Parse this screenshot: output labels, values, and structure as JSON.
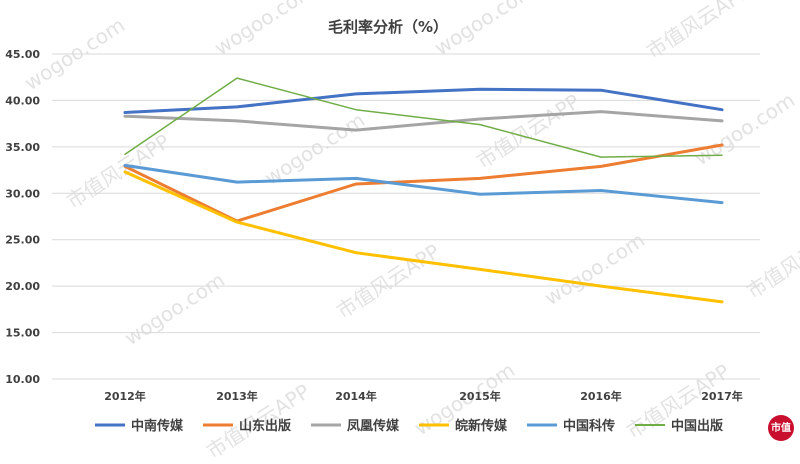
{
  "watermark": {
    "text": "wogoo.com",
    "text2": "市值风云APP"
  },
  "logo": {
    "text": "市值"
  },
  "chart_data": {
    "type": "line",
    "title": "毛利率分析（%）",
    "categories": [
      "2012年",
      "2013年",
      "2014年",
      "2015年",
      "2016年",
      "2017年"
    ],
    "ylim": [
      10,
      45
    ],
    "yticks": [
      "10.00",
      "15.00",
      "20.00",
      "25.00",
      "30.00",
      "35.00",
      "40.00",
      "45.00"
    ],
    "grid": true,
    "legend_position": "bottom",
    "series": [
      {
        "name": "中南传媒",
        "color": "#4472c4",
        "width": 3,
        "values": [
          38.7,
          39.3,
          40.7,
          41.2,
          41.1,
          39.0
        ]
      },
      {
        "name": "山东出版",
        "color": "#ed7d31",
        "width": 3,
        "values": [
          32.9,
          27.0,
          31.0,
          31.6,
          32.9,
          35.2
        ]
      },
      {
        "name": "凤凰传媒",
        "color": "#a5a5a5",
        "width": 3,
        "values": [
          38.3,
          37.8,
          36.8,
          38.0,
          38.8,
          37.8
        ]
      },
      {
        "name": "皖新传媒",
        "color": "#ffc000",
        "width": 3,
        "values": [
          32.3,
          26.9,
          23.6,
          21.8,
          20.0,
          18.3
        ]
      },
      {
        "name": "中国科传",
        "color": "#5b9bd5",
        "width": 3,
        "values": [
          33.0,
          31.2,
          31.6,
          29.9,
          30.3,
          29.0
        ]
      },
      {
        "name": "中国出版",
        "color": "#70ad47",
        "width": 1.5,
        "values": [
          34.2,
          42.4,
          39.0,
          37.4,
          33.9,
          34.1
        ]
      }
    ]
  }
}
